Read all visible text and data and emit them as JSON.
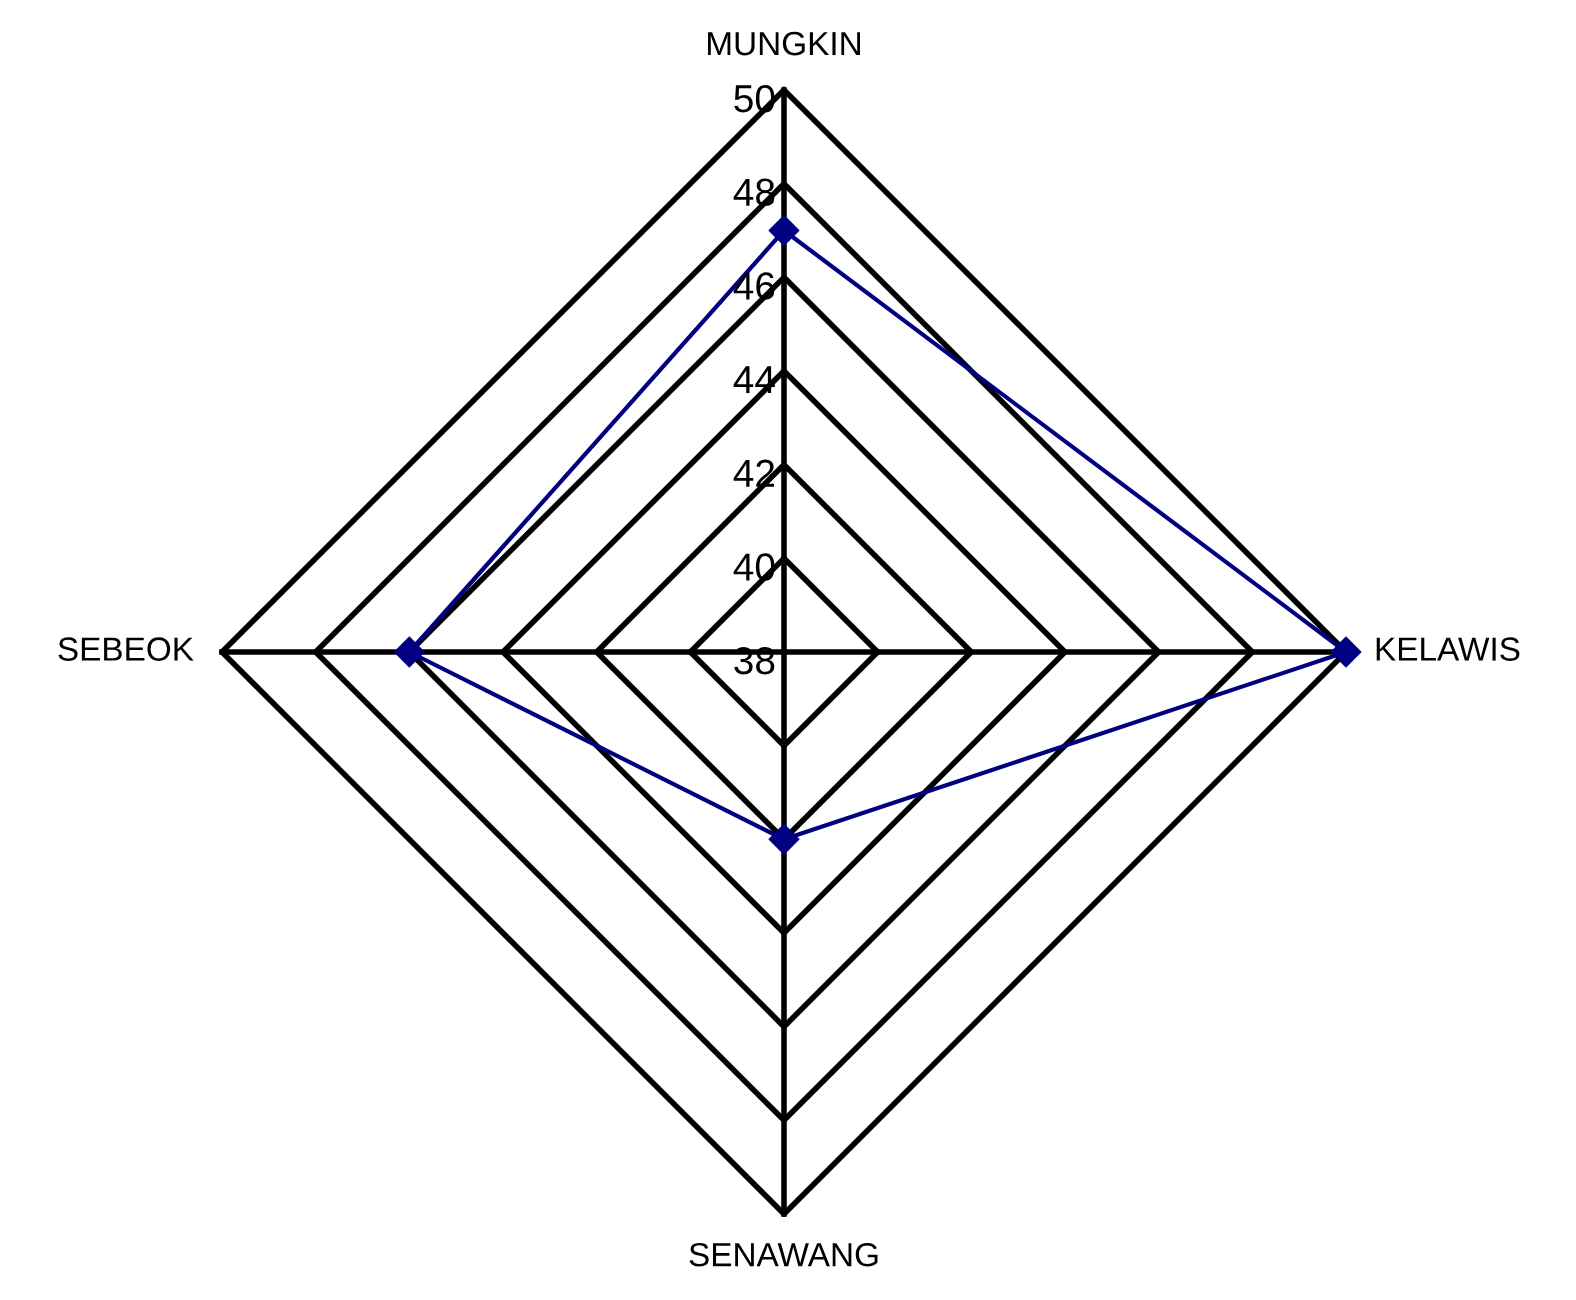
{
  "chart_data": {
    "type": "radar",
    "categories": [
      "MUNGKIN",
      "KELAWIS",
      "SENAWANG",
      "SEBEOK"
    ],
    "series": [
      {
        "color": "#000080",
        "values": [
          47,
          50,
          42,
          46
        ]
      }
    ],
    "ylim": [
      38,
      50
    ],
    "yticks": [
      38,
      40,
      42,
      44,
      46,
      48,
      50
    ],
    "marker": "diamond",
    "line_style": "solid",
    "grid": true
  }
}
